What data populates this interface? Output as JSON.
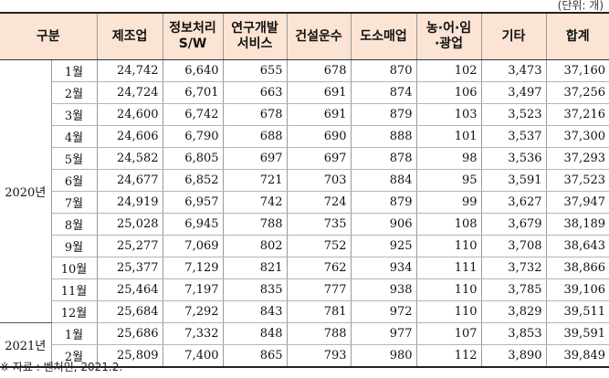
{
  "unit_note": "(단위: 개)",
  "headers": [
    "구분",
    "제조업",
    "정보처리\nS/W",
    "연구개발\n서비스",
    "건설운수",
    "도소매업",
    "농·어·임\n·광업",
    "기타",
    "합계"
  ],
  "groups": [
    {
      "year": "2020년",
      "rows": [
        {
          "month": "1월",
          "values": [
            "24,742",
            "6,640",
            "655",
            "678",
            "870",
            "102",
            "3,473",
            "37,160"
          ]
        },
        {
          "month": "2월",
          "values": [
            "24,724",
            "6,701",
            "663",
            "691",
            "874",
            "106",
            "3,497",
            "37,256"
          ]
        },
        {
          "month": "3월",
          "values": [
            "24,600",
            "6,742",
            "678",
            "691",
            "879",
            "103",
            "3,523",
            "37,216"
          ]
        },
        {
          "month": "4월",
          "values": [
            "24,606",
            "6,790",
            "688",
            "690",
            "888",
            "101",
            "3,537",
            "37,300"
          ]
        },
        {
          "month": "5월",
          "values": [
            "24,582",
            "6,805",
            "697",
            "697",
            "878",
            "98",
            "3,536",
            "37,293"
          ]
        },
        {
          "month": "6월",
          "values": [
            "24,677",
            "6,852",
            "721",
            "703",
            "884",
            "95",
            "3,591",
            "37,523"
          ]
        },
        {
          "month": "7월",
          "values": [
            "24,919",
            "6,957",
            "742",
            "724",
            "879",
            "99",
            "3,627",
            "37,947"
          ]
        },
        {
          "month": "8월",
          "values": [
            "25,028",
            "6,945",
            "788",
            "735",
            "906",
            "108",
            "3,679",
            "38,189"
          ]
        },
        {
          "month": "9월",
          "values": [
            "25,277",
            "7,069",
            "802",
            "752",
            "925",
            "110",
            "3,708",
            "38,643"
          ]
        },
        {
          "month": "10월",
          "values": [
            "25,377",
            "7,129",
            "821",
            "762",
            "934",
            "111",
            "3,732",
            "38,866"
          ]
        },
        {
          "month": "11월",
          "values": [
            "25,464",
            "7,197",
            "835",
            "777",
            "938",
            "110",
            "3,785",
            "39,106"
          ]
        },
        {
          "month": "12월",
          "values": [
            "25,684",
            "7,292",
            "843",
            "781",
            "972",
            "110",
            "3,829",
            "39,511"
          ]
        }
      ]
    },
    {
      "year": "2021년",
      "rows": [
        {
          "month": "1월",
          "values": [
            "25,686",
            "7,332",
            "848",
            "788",
            "977",
            "107",
            "3,853",
            "39,591"
          ]
        },
        {
          "month": "2월",
          "values": [
            "25,809",
            "7,400",
            "865",
            "793",
            "980",
            "112",
            "3,890",
            "39,849"
          ]
        }
      ]
    }
  ],
  "source_note": "※ 자료 : 벤처인, 2021.2.",
  "colors": {
    "header_bg": "#fbe4d4"
  }
}
